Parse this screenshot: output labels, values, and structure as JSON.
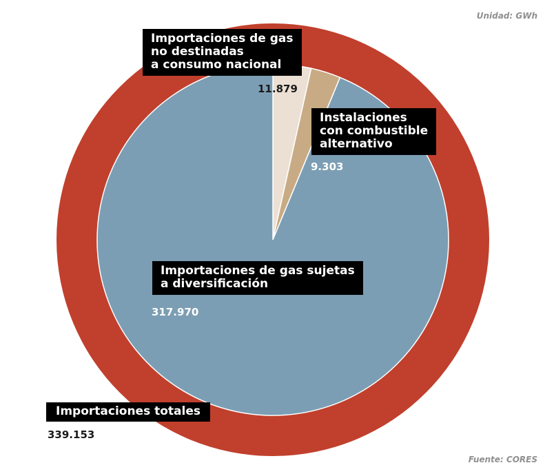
{
  "unit_note": "Unidad: GWh",
  "source_note": "Fuente: CORES",
  "colors": {
    "outer_ring": "#c0402d",
    "diversification": "#7c9eb4",
    "alternative_fuel": "#c8ab85",
    "non_domestic": "#ebe0d3",
    "label_bg": "#000000"
  },
  "labels": {
    "non_domestic": [
      "Importaciones de gas",
      "no destinadas",
      "a consumo nacional"
    ],
    "alt_fuel": [
      "Instalaciones",
      "con combustible",
      "alternativo"
    ],
    "diversification": [
      "Importaciones de gas sujetas",
      "a diversificación"
    ],
    "total": "Importaciones totales"
  },
  "chart_data": {
    "type": "pie",
    "title": "",
    "unit": "GWh",
    "total": {
      "name": "Importaciones totales",
      "value": 339153,
      "value_label": "339.153"
    },
    "slices": [
      {
        "name": "Importaciones de gas no destinadas a consumo nacional",
        "value": 11879,
        "value_label": "11.879"
      },
      {
        "name": "Instalaciones con combustible alternativo",
        "value": 9303,
        "value_label": "9.303"
      },
      {
        "name": "Importaciones de gas sujetas a diversificación",
        "value": 317970,
        "value_label": "317.970"
      }
    ]
  }
}
